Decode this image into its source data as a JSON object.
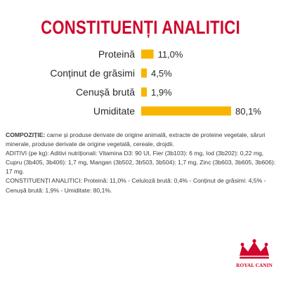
{
  "colors": {
    "title": "#d0062c",
    "bar": "#f7b500",
    "label": "#2a2a2a",
    "text": "#3a3a3a",
    "logo": "#d0062c"
  },
  "title": "CONSTITUENȚI ANALITICI",
  "chart_data": {
    "type": "bar",
    "orientation": "horizontal",
    "categories": [
      "Proteină",
      "Conținut de grăsimi",
      "Cenușă brută",
      "Umiditate"
    ],
    "values": [
      11.0,
      4.5,
      1.9,
      80.1
    ],
    "value_labels": [
      "11,0%",
      "4,5%",
      "1,9%",
      "80,1%"
    ],
    "unit": "%",
    "grid": false,
    "legend": "none"
  },
  "composition": {
    "heading": "COMPOZIȚIE:",
    "text": " carne și produse derivate de origine animală, extracte de proteine vegetale, săruri minerale, produse derivate de origine vegetală, cereale, drojdii.",
    "additives": "ADITIVI (pe kg): Aditivi nutriționali: Vitamina D3: 90 UI, Fier (3b103): 6 mg, Iod (3b202): 0,22 mg, Cupru (3b405, 3b406): 1,7 mg, Mangan (3b502, 3b503, 3b504): 1,7 mg, Zinc (3b603, 3b605, 3b606): 17 mg.",
    "analytical": "CONSTITUENȚI ANALITICI: Proteină: 11,0% - Celuloză brută: 0,4% - Conținut de grăsimi: 4,5% - Cenușă brută: 1,9% - Umiditate: 80,1%."
  },
  "logo": {
    "text": "ROYAL CANIN",
    "icon": "crown-icon"
  }
}
